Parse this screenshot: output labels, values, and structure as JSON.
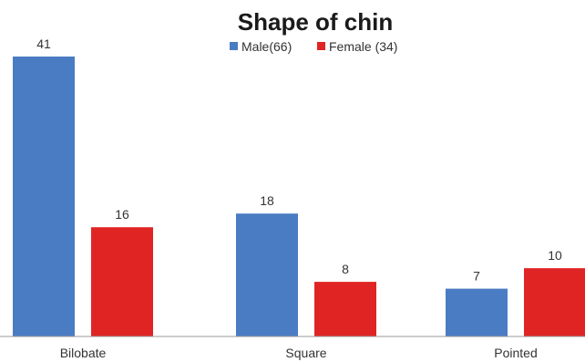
{
  "chart_data": {
    "type": "bar",
    "title": "Shape of chin",
    "categories": [
      "Bilobate",
      "Square",
      "Pointed"
    ],
    "series": [
      {
        "name": "Male(66)",
        "values": [
          41,
          18,
          7
        ],
        "color": "#4a7cc3"
      },
      {
        "name": "Female (34)",
        "values": [
          16,
          8,
          10
        ],
        "color": "#e02424"
      }
    ],
    "ylim": [
      0,
      41
    ],
    "xlabel": "",
    "ylabel": "",
    "grid": false,
    "legend_position": "top-center",
    "axis_color": "#999999"
  }
}
